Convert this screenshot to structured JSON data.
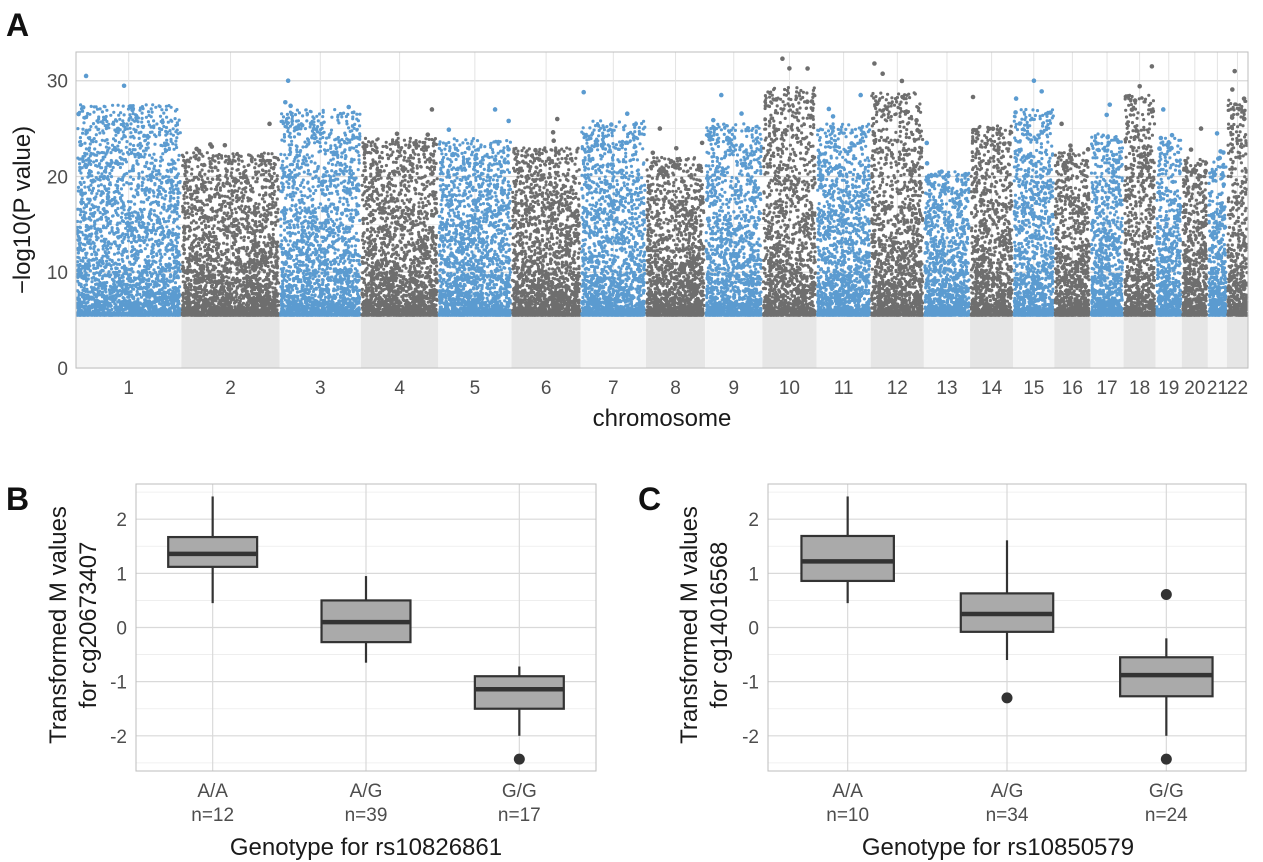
{
  "chart_data": [
    {
      "panel": "A",
      "type": "scatter",
      "xlabel": "chromosome",
      "ylabel": "−log10(P value)",
      "ylim": [
        0,
        33
      ],
      "yticks": [
        0,
        10,
        20,
        30
      ],
      "grid": true,
      "colors": {
        "odd": "#5b9bd0",
        "even": "#6e6e6e",
        "below_threshold": "#e6e6e6"
      },
      "significance_threshold": 5.5,
      "chromosomes": [
        {
          "label": "1",
          "max": 30.5
        },
        {
          "label": "2",
          "max": 25.5
        },
        {
          "label": "3",
          "max": 30.0
        },
        {
          "label": "4",
          "max": 27.0
        },
        {
          "label": "5",
          "max": 27.0
        },
        {
          "label": "6",
          "max": 26.0
        },
        {
          "label": "7",
          "max": 28.8
        },
        {
          "label": "8",
          "max": 25.0
        },
        {
          "label": "9",
          "max": 28.5
        },
        {
          "label": "10",
          "max": 32.3
        },
        {
          "label": "11",
          "max": 28.5
        },
        {
          "label": "12",
          "max": 31.8
        },
        {
          "label": "13",
          "max": 23.5
        },
        {
          "label": "14",
          "max": 28.3
        },
        {
          "label": "15",
          "max": 30.0
        },
        {
          "label": "16",
          "max": 25.5
        },
        {
          "label": "17",
          "max": 27.5
        },
        {
          "label": "18",
          "max": 31.5
        },
        {
          "label": "19",
          "max": 27.0
        },
        {
          "label": "20",
          "max": 25.0
        },
        {
          "label": "21",
          "max": 24.5
        },
        {
          "label": "22",
          "max": 31.0
        }
      ]
    },
    {
      "panel": "B",
      "type": "box",
      "xlabel": "Genotype for rs10826861",
      "ylabel": [
        "Transformed M values",
        "for cg20673407"
      ],
      "ylim": [
        -2.65,
        2.65
      ],
      "yticks": [
        -2,
        -1,
        0,
        1,
        2
      ],
      "groups": [
        {
          "label": "A/A",
          "n": "n=12",
          "whisker_low": 0.45,
          "q1": 1.12,
          "median": 1.36,
          "q3": 1.67,
          "whisker_high": 2.42,
          "outliers": []
        },
        {
          "label": "A/G",
          "n": "n=39",
          "whisker_low": -0.65,
          "q1": -0.27,
          "median": 0.1,
          "q3": 0.5,
          "whisker_high": 0.95,
          "outliers": []
        },
        {
          "label": "G/G",
          "n": "n=17",
          "whisker_low": -2.0,
          "q1": -1.5,
          "median": -1.14,
          "q3": -0.9,
          "whisker_high": -0.72,
          "outliers": [
            -2.43
          ]
        }
      ]
    },
    {
      "panel": "C",
      "type": "box",
      "xlabel": "Genotype for rs10850579",
      "ylabel": [
        "Transformed M values",
        "for cg14016568"
      ],
      "ylim": [
        -2.65,
        2.65
      ],
      "yticks": [
        -2,
        -1,
        0,
        1,
        2
      ],
      "groups": [
        {
          "label": "A/A",
          "n": "n=10",
          "whisker_low": 0.45,
          "q1": 0.86,
          "median": 1.22,
          "q3": 1.69,
          "whisker_high": 2.42,
          "outliers": []
        },
        {
          "label": "A/G",
          "n": "n=34",
          "whisker_low": -0.6,
          "q1": -0.08,
          "median": 0.25,
          "q3": 0.63,
          "whisker_high": 1.61,
          "outliers": [
            -1.3
          ]
        },
        {
          "label": "G/G",
          "n": "n=24",
          "whisker_low": -2.0,
          "q1": -1.27,
          "median": -0.88,
          "q3": -0.55,
          "whisker_high": -0.2,
          "outliers": [
            0.61,
            -2.43
          ]
        }
      ]
    }
  ],
  "box_style": {
    "fill": "#aaaaaa",
    "stroke": "#333333"
  }
}
